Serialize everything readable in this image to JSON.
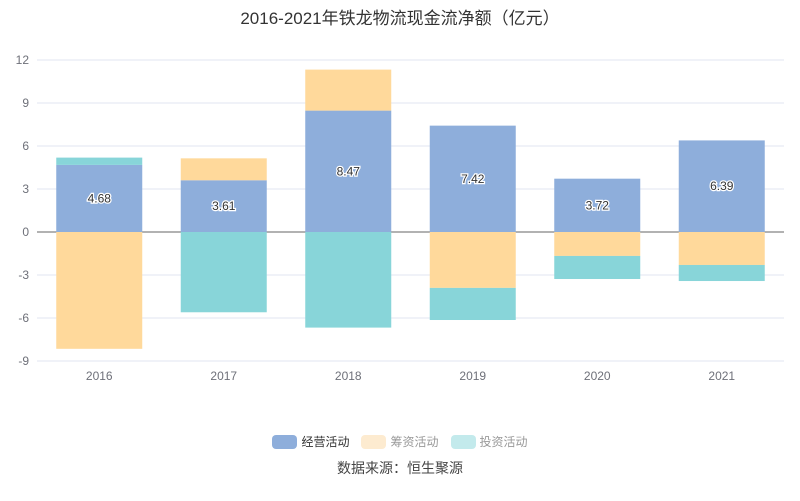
{
  "chart_data": {
    "type": "bar",
    "stacked": true,
    "title": "2016-2021年铁龙物流现金流净额（亿元）",
    "categories": [
      "2016",
      "2017",
      "2018",
      "2019",
      "2020",
      "2021"
    ],
    "yticks": [
      "12",
      "9",
      "6",
      "3",
      "0",
      "-3",
      "-6",
      "-9"
    ],
    "ylim": [
      -9,
      12
    ],
    "series": [
      {
        "name": "经营活动",
        "color": "#8eaedb",
        "values": [
          4.68,
          3.61,
          8.47,
          7.42,
          3.72,
          6.39
        ],
        "labels": [
          "4.68",
          "3.61",
          "8.47",
          "7.42",
          "3.72",
          "6.39"
        ]
      },
      {
        "name": "筹资活动",
        "color": "#ffd99b",
        "legend_color": "#fdebd0",
        "values": [
          -8.15,
          1.53,
          2.86,
          -3.9,
          -1.67,
          -2.3
        ]
      },
      {
        "name": "投资活动",
        "color": "#88d5d9",
        "legend_color": "#c3eaec",
        "values": [
          0.51,
          -5.6,
          -6.67,
          -2.24,
          -1.61,
          -1.12
        ]
      }
    ],
    "legend": "bottom",
    "grid": true
  },
  "source": "数据来源：恒生聚源"
}
